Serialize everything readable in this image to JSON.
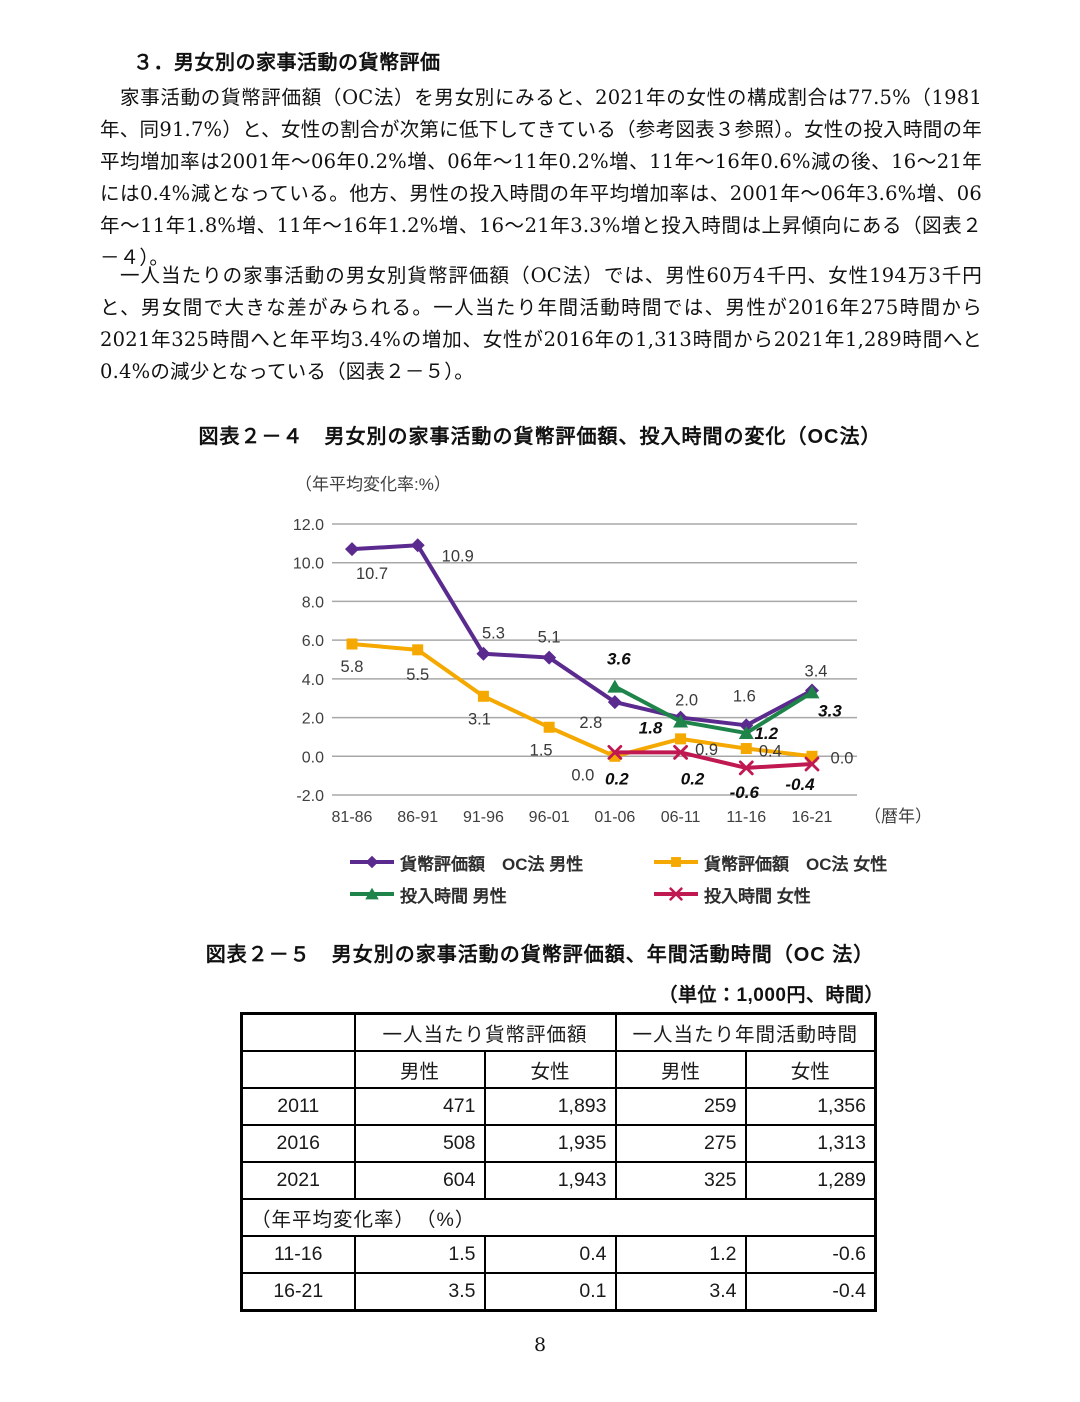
{
  "page": {
    "heading": "３．男女別の家事活動の貨幣評価",
    "paragraph1": "家事活動の貨幣評価額（OC法）を男女別にみると、2021年の女性の構成割合は77.5%（1981年、同91.7%）と、女性の割合が次第に低下してきている（参考図表３参照）。女性の投入時間の年平均増加率は2001年～06年0.2%増、06年～11年0.2%増、11年～16年0.6%減の後、16～21年には0.4%減となっている。他方、男性の投入時間の年平均増加率は、2001年～06年3.6%増、06年～11年1.8%増、11年～16年1.2%増、16～21年3.3%増と投入時間は上昇傾向にある（図表２－４）。",
    "paragraph2": "一人当たりの家事活動の男女別貨幣評価額（OC法）では、男性60万4千円、女性194万3千円と、男女間で大きな差がみられる。一人当たり年間活動時間では、男性が2016年275時間から2021年325時間へと年平均3.4%の増加、女性が2016年の1,313時間から2021年1,289時間へと0.4%の減少となっている（図表２－５）。",
    "page_number": "8"
  },
  "figure1": {
    "title": "図表２－４　男女別の家事活動の貨幣評価額、投入時間の変化（OC法）"
  },
  "chart_data": {
    "type": "line",
    "axis_title": "（年平均変化率:%）",
    "x_unit_label": "（暦年）",
    "categories": [
      "81-86",
      "86-91",
      "91-96",
      "96-01",
      "01-06",
      "06-11",
      "11-16",
      "16-21"
    ],
    "ylim": [
      -2.0,
      12.0
    ],
    "ytick_step": 2.0,
    "yticks": [
      "12.0",
      "10.0",
      "8.0",
      "6.0",
      "4.0",
      "2.0",
      "0.0",
      "-2.0"
    ],
    "grid": "horizontal",
    "legend_position": "bottom",
    "series": [
      {
        "name": "貨幣評価額　OC法 男性",
        "color": "#5b2a8f",
        "marker": "diamond",
        "values": [
          10.7,
          10.9,
          5.3,
          5.1,
          2.8,
          2.0,
          1.6,
          3.4
        ],
        "labels": [
          "10.7",
          "10.9",
          "5.3",
          "5.1",
          "2.8",
          "2.0",
          "1.6",
          "3.4"
        ],
        "label_style": "regular"
      },
      {
        "name": "貨幣評価額　OC法 女性",
        "color": "#f5a800",
        "marker": "square",
        "values": [
          5.8,
          5.5,
          3.1,
          1.5,
          0.0,
          0.9,
          0.4,
          0.0
        ],
        "labels": [
          "5.8",
          "5.5",
          "3.1",
          "1.5",
          "0.0",
          "0.9",
          "0.4",
          "0.0"
        ],
        "label_style": "regular"
      },
      {
        "name": "投入時間 男性",
        "color": "#1e8449",
        "marker": "triangle",
        "values": [
          null,
          null,
          null,
          null,
          3.6,
          1.8,
          1.2,
          3.3
        ],
        "labels": [
          null,
          null,
          null,
          null,
          "3.6",
          "1.8",
          "1.2",
          "3.3"
        ],
        "label_style": "bold-italic"
      },
      {
        "name": "投入時間 女性",
        "color": "#c01951",
        "marker": "x",
        "values": [
          null,
          null,
          null,
          null,
          0.2,
          0.2,
          -0.6,
          -0.4
        ],
        "labels": [
          null,
          null,
          null,
          null,
          "0.2",
          "0.2",
          "-0.6",
          "-0.4"
        ],
        "label_style": "bold-italic"
      }
    ]
  },
  "figure2": {
    "title": "図表２－５　男女別の家事活動の貨幣評価額、年間活動時間（OC 法）",
    "unit_note": "（単位：1,000円、時間）",
    "table": {
      "group_headers": [
        "一人当たり貨幣評価額",
        "一人当たり年間活動時間"
      ],
      "sub_headers": [
        "男性",
        "女性",
        "男性",
        "女性"
      ],
      "rows": [
        {
          "label": "2011",
          "values": [
            "471",
            "1,893",
            "259",
            "1,356"
          ]
        },
        {
          "label": "2016",
          "values": [
            "508",
            "1,935",
            "275",
            "1,313"
          ]
        },
        {
          "label": "2021",
          "values": [
            "604",
            "1,943",
            "325",
            "1,289"
          ]
        }
      ],
      "note_row": "（年平均変化率）　（%）",
      "rate_rows": [
        {
          "label": "11-16",
          "values": [
            "1.5",
            "0.4",
            "1.2",
            "-0.6"
          ]
        },
        {
          "label": "16-21",
          "values": [
            "3.5",
            "0.1",
            "3.4",
            "-0.4"
          ]
        }
      ]
    }
  }
}
